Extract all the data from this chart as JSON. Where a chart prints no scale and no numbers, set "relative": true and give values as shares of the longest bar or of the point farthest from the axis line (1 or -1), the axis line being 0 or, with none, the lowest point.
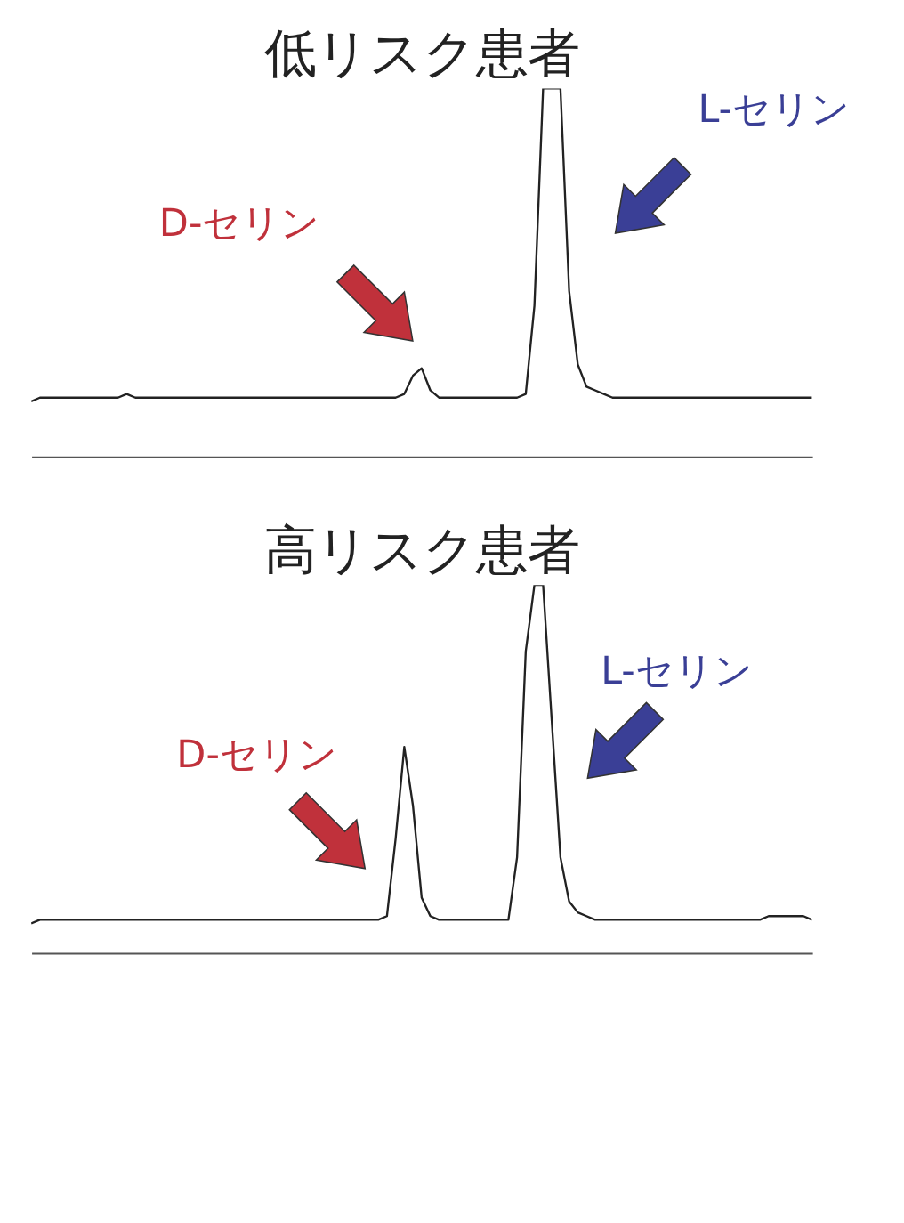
{
  "chart_data": [
    {
      "type": "line",
      "title": "低リスク患者",
      "relative": true,
      "tick_labels": false,
      "grid": false,
      "legend": false,
      "annotations": [
        "D-セリン",
        "L-セリン"
      ],
      "categories": [
        null,
        null,
        null,
        null,
        null,
        null,
        null,
        null,
        null,
        null,
        null,
        null,
        null,
        null,
        null,
        null,
        null,
        null,
        null,
        null,
        null,
        null,
        null,
        null,
        null,
        null,
        null,
        null,
        null,
        null,
        null,
        null,
        null,
        null,
        null,
        null,
        null,
        null,
        null,
        null,
        null,
        null,
        null,
        null,
        null,
        null,
        null,
        null,
        null,
        null,
        null,
        null,
        null,
        null,
        null,
        null,
        null,
        null,
        null,
        null,
        null,
        null,
        null,
        null,
        null,
        null,
        null,
        null,
        null,
        null,
        null,
        null,
        null,
        null,
        null,
        null,
        null,
        null,
        null,
        null,
        null,
        null,
        null,
        null,
        null,
        null,
        null,
        null,
        null,
        null,
        null
      ],
      "series": [
        {
          "color": "#222222",
          "values": [
            0.15,
            0.16,
            0.16,
            0.16,
            0.16,
            0.16,
            0.16,
            0.16,
            0.16,
            0.16,
            0.16,
            0.17,
            0.16,
            0.16,
            0.16,
            0.16,
            0.16,
            0.16,
            0.16,
            0.16,
            0.16,
            0.16,
            0.16,
            0.16,
            0.16,
            0.16,
            0.16,
            0.16,
            0.16,
            0.16,
            0.16,
            0.16,
            0.16,
            0.16,
            0.16,
            0.16,
            0.16,
            0.16,
            0.16,
            0.16,
            0.16,
            0.16,
            0.16,
            0.17,
            0.22,
            0.24,
            0.18,
            0.16,
            0.16,
            0.16,
            0.16,
            0.16,
            0.16,
            0.16,
            0.16,
            0.16,
            0.16,
            0.17,
            0.41,
            1,
            1,
            1,
            0.45,
            0.25,
            0.19,
            0.18,
            0.17,
            0.16,
            0.16,
            0.16,
            0.16,
            0.16,
            0.16,
            0.16,
            0.16,
            0.16,
            0.16,
            0.16,
            0.16,
            0.16,
            0.16,
            0.16,
            0.16,
            0.16,
            0.16,
            0.16,
            0.16,
            0.16,
            0.16,
            0.16,
            0.16
          ]
        }
      ]
    },
    {
      "type": "line",
      "title": "高リスク患者",
      "relative": true,
      "tick_labels": false,
      "grid": false,
      "legend": false,
      "annotations": [
        "D-セリン",
        "L-セリン"
      ],
      "categories": [
        null,
        null,
        null,
        null,
        null,
        null,
        null,
        null,
        null,
        null,
        null,
        null,
        null,
        null,
        null,
        null,
        null,
        null,
        null,
        null,
        null,
        null,
        null,
        null,
        null,
        null,
        null,
        null,
        null,
        null,
        null,
        null,
        null,
        null,
        null,
        null,
        null,
        null,
        null,
        null,
        null,
        null,
        null,
        null,
        null,
        null,
        null,
        null,
        null,
        null,
        null,
        null,
        null,
        null,
        null,
        null,
        null,
        null,
        null,
        null,
        null,
        null,
        null,
        null,
        null,
        null,
        null,
        null,
        null,
        null,
        null,
        null,
        null,
        null,
        null,
        null,
        null,
        null,
        null,
        null,
        null,
        null,
        null,
        null,
        null,
        null,
        null,
        null,
        null,
        null,
        null
      ],
      "series": [
        {
          "color": "#222222",
          "values": [
            0.08,
            0.09,
            0.09,
            0.09,
            0.09,
            0.09,
            0.09,
            0.09,
            0.09,
            0.09,
            0.09,
            0.09,
            0.09,
            0.09,
            0.09,
            0.09,
            0.09,
            0.09,
            0.09,
            0.09,
            0.09,
            0.09,
            0.09,
            0.09,
            0.09,
            0.09,
            0.09,
            0.09,
            0.09,
            0.09,
            0.09,
            0.09,
            0.09,
            0.09,
            0.09,
            0.09,
            0.09,
            0.09,
            0.09,
            0.09,
            0.09,
            0.1,
            0.31,
            0.56,
            0.4,
            0.15,
            0.1,
            0.09,
            0.09,
            0.09,
            0.09,
            0.09,
            0.09,
            0.09,
            0.09,
            0.09,
            0.26,
            0.82,
            1,
            1,
            0.63,
            0.26,
            0.14,
            0.11,
            0.1,
            0.09,
            0.09,
            0.09,
            0.09,
            0.09,
            0.09,
            0.09,
            0.09,
            0.09,
            0.09,
            0.09,
            0.09,
            0.09,
            0.09,
            0.09,
            0.09,
            0.09,
            0.09,
            0.09,
            0.09,
            0.1,
            0.1,
            0.1,
            0.1,
            0.1,
            0.09
          ]
        }
      ]
    }
  ]
}
